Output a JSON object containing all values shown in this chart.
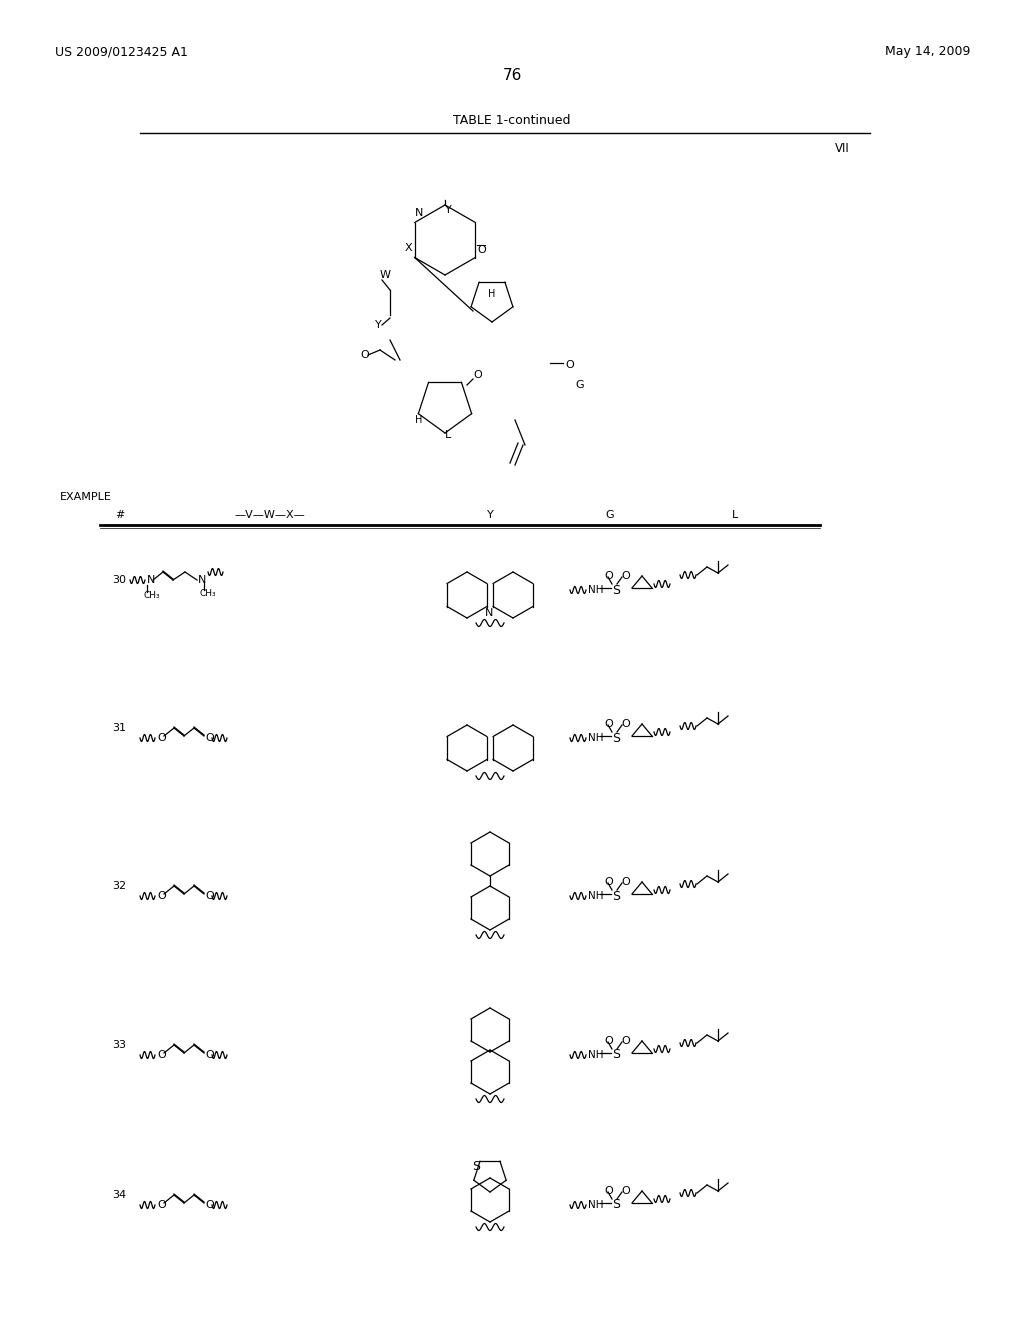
{
  "page_header_left": "US 2009/0123425 A1",
  "page_header_right": "May 14, 2009",
  "page_number": "76",
  "table_title": "TABLE 1-continued",
  "col_label_vii": "VII",
  "col_headers": [
    "#",
    "—V—W—X—",
    "Y",
    "G",
    "L"
  ],
  "example_label": "EXAMPLE",
  "row_numbers": [
    "30",
    "31",
    "32",
    "33",
    "34"
  ],
  "background": "#ffffff",
  "text_color": "#000000",
  "line_color": "#000000",
  "font_size_header": 9,
  "font_size_body": 8,
  "font_size_page": 10
}
